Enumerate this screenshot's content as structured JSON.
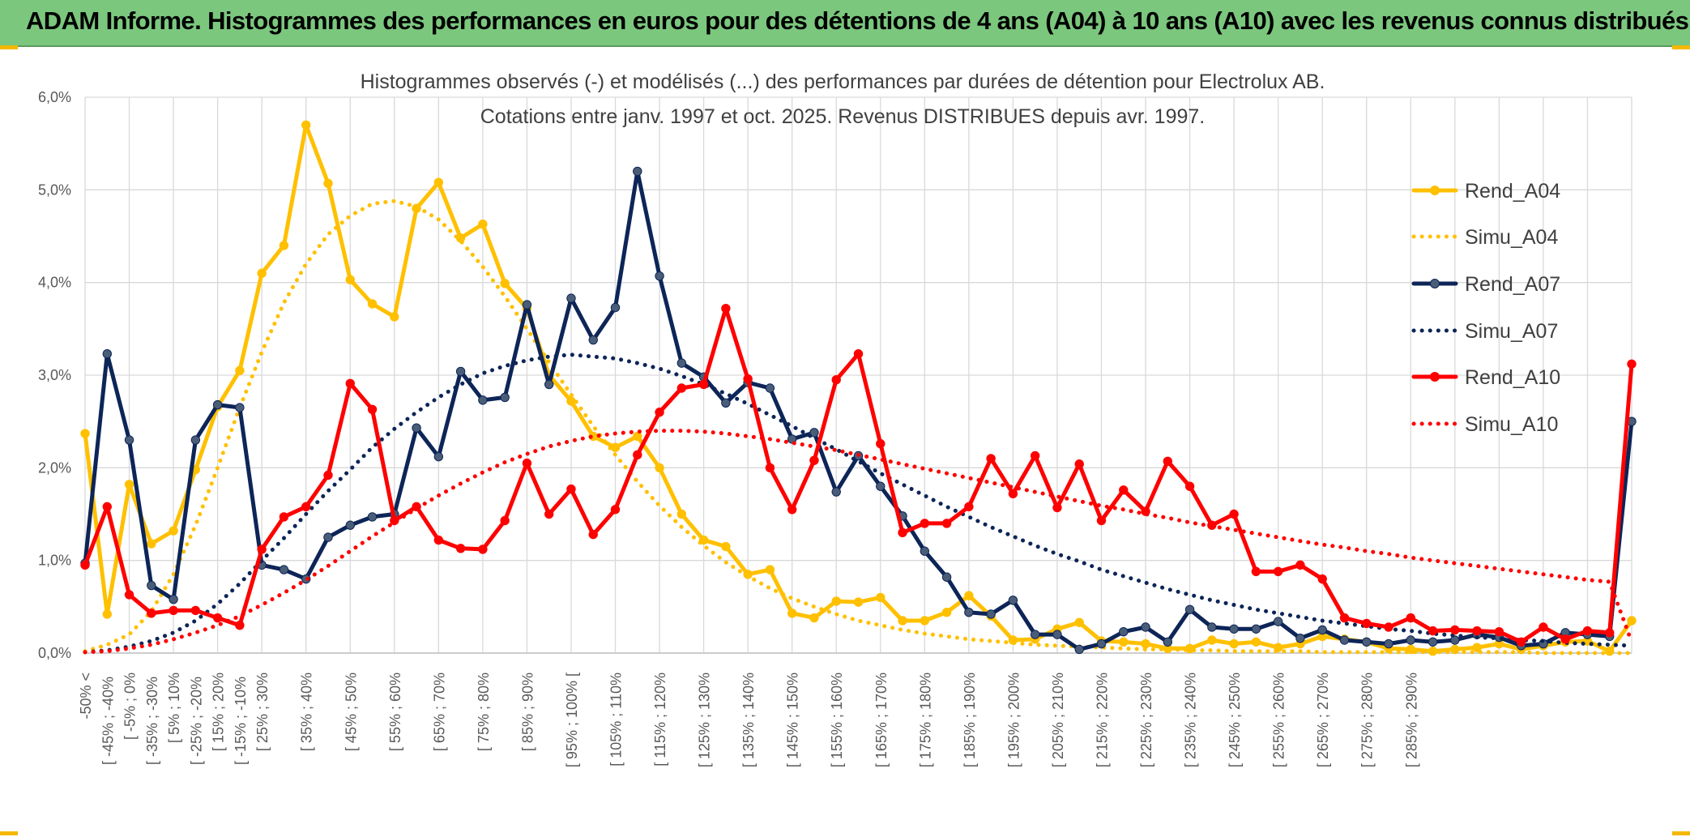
{
  "header": {
    "title": "ADAM Informe. Histogrammes des performances en euros pour des détentions de 4 ans (A04) à 10 ans (A10) avec les revenus connus distribués"
  },
  "colors": {
    "a04": "#ffc000",
    "a07": "#0d2557",
    "a10": "#ff0000",
    "banner": "#7bc77e"
  },
  "chart_data": {
    "type": "line",
    "title": "Histogrammes observés (-) et modélisés (...) des performances par durées de détention pour Electrolux AB.",
    "subtitle": "Cotations entre janv. 1997 et oct. 2025. Revenus DISTRIBUES depuis avr. 1997.",
    "ylim": [
      0,
      6
    ],
    "yticks": [
      "0,0%",
      "1,0%",
      "2,0%",
      "3,0%",
      "4,0%",
      "5,0%",
      "6,0%"
    ],
    "xlabels_odd": [
      "-50% <",
      "[ -5% ; 0%",
      "[ 5% ; 10%",
      "[ 15% ; 20%",
      "[ 25% ; 30%",
      "[ 35% ; 40%",
      "[ 45% ; 50%",
      "[ 55% ; 60%",
      "[ 65% ; 70%",
      "[ 75% ; 80%",
      "[ 85% ; 90%",
      "[ 95% ; 100% [",
      "[ 105% ; 110%",
      "[ 115% ; 120%",
      "[ 125% ; 130%",
      "[ 135% ; 140%",
      "[ 145% ; 150%",
      "[ 155% ; 160%",
      "[ 165% ; 170%",
      "[ 175% ; 180%",
      "[ 185% ; 190%",
      "[ 195% ; 200%",
      "[ 205% ; 210%",
      "[ 215% ; 220%",
      "[ 225% ; 230%",
      "[ 235% ; 240%",
      "[ 245% ; 250%",
      "[ 255% ; 260%",
      "[ 265% ; 270%",
      "[ 275% ; 280%",
      "[ 285% ; 290%"
    ],
    "xlabels_even": [
      "[ -45% ; -40%",
      "[ -35% ; -30%",
      "[ -25% ; -20%",
      "[ -15% ; -10%"
    ],
    "series": [
      {
        "name": "Rend_A04",
        "style": "solid",
        "color": "#ffc000",
        "values": [
          2.37,
          0.42,
          1.82,
          1.18,
          1.32,
          1.98,
          2.66,
          3.05,
          4.1,
          4.4,
          5.7,
          5.07,
          4.03,
          3.77,
          3.63,
          4.8,
          5.08,
          4.48,
          4.63,
          3.99,
          3.72,
          3.0,
          2.72,
          2.34,
          2.22,
          2.34,
          2.0,
          1.5,
          1.22,
          1.15,
          0.85,
          0.9,
          0.43,
          0.38,
          0.56,
          0.55,
          0.6,
          0.35,
          0.35,
          0.44,
          0.62,
          0.4,
          0.14,
          0.15,
          0.26,
          0.33,
          0.13,
          0.12,
          0.1,
          0.05,
          0.05,
          0.14,
          0.1,
          0.12,
          0.06,
          0.1,
          0.18,
          0.15,
          0.12,
          0.05,
          0.04,
          0.02,
          0.04,
          0.06,
          0.1,
          0.04,
          0.08,
          0.12,
          0.13,
          0.02,
          0.35
        ]
      },
      {
        "name": "Simu_A04",
        "style": "dotted",
        "color": "#ffc000",
        "values": [
          0.02,
          0.09,
          0.2,
          0.45,
          0.85,
          1.38,
          2.0,
          2.65,
          3.25,
          3.78,
          4.2,
          4.52,
          4.72,
          4.85,
          4.88,
          4.82,
          4.68,
          4.45,
          4.17,
          3.85,
          3.5,
          3.14,
          2.79,
          2.45,
          2.14,
          1.85,
          1.59,
          1.36,
          1.16,
          0.98,
          0.83,
          0.7,
          0.59,
          0.5,
          0.42,
          0.35,
          0.3,
          0.25,
          0.21,
          0.18,
          0.15,
          0.13,
          0.11,
          0.09,
          0.08,
          0.07,
          0.06,
          0.05,
          0.04,
          0.04,
          0.03,
          0.03,
          0.02,
          0.02,
          0.02,
          0.02,
          0.01,
          0.01,
          0.01,
          0.01,
          0.01,
          0.01,
          0.01,
          0.01,
          0.01,
          0.01,
          0.0,
          0.0,
          0.0,
          0.0,
          0.0
        ]
      },
      {
        "name": "Rend_A07",
        "style": "solid",
        "color": "#0d2557",
        "values": [
          0.97,
          3.23,
          2.3,
          0.73,
          0.58,
          2.3,
          2.68,
          2.65,
          0.95,
          0.9,
          0.8,
          1.25,
          1.38,
          1.47,
          1.5,
          2.43,
          2.12,
          3.04,
          2.73,
          2.76,
          3.76,
          2.9,
          3.83,
          3.38,
          3.73,
          5.2,
          4.07,
          3.13,
          2.98,
          2.7,
          2.92,
          2.86,
          2.31,
          2.38,
          1.74,
          2.13,
          1.8,
          1.48,
          1.1,
          0.82,
          0.44,
          0.42,
          0.57,
          0.2,
          0.2,
          0.04,
          0.1,
          0.23,
          0.28,
          0.12,
          0.47,
          0.28,
          0.26,
          0.26,
          0.34,
          0.16,
          0.25,
          0.14,
          0.12,
          0.1,
          0.14,
          0.12,
          0.14,
          0.2,
          0.17,
          0.08,
          0.1,
          0.22,
          0.2,
          0.18,
          2.5
        ]
      },
      {
        "name": "Simu_A07",
        "style": "dotted",
        "color": "#0d2557",
        "values": [
          0.01,
          0.03,
          0.07,
          0.13,
          0.22,
          0.35,
          0.53,
          0.75,
          1.0,
          1.24,
          1.5,
          1.75,
          1.98,
          2.22,
          2.42,
          2.6,
          2.76,
          2.9,
          3.02,
          3.1,
          3.16,
          3.2,
          3.22,
          3.2,
          3.18,
          3.13,
          3.07,
          2.99,
          2.9,
          2.8,
          2.69,
          2.57,
          2.45,
          2.32,
          2.2,
          2.07,
          1.94,
          1.82,
          1.7,
          1.58,
          1.47,
          1.36,
          1.26,
          1.16,
          1.07,
          0.99,
          0.9,
          0.83,
          0.76,
          0.69,
          0.63,
          0.57,
          0.52,
          0.47,
          0.43,
          0.39,
          0.35,
          0.32,
          0.29,
          0.26,
          0.24,
          0.21,
          0.19,
          0.17,
          0.16,
          0.14,
          0.13,
          0.11,
          0.1,
          0.09,
          0.08
        ]
      },
      {
        "name": "Rend_A10",
        "style": "solid",
        "color": "#ff0000",
        "values": [
          0.95,
          1.58,
          0.63,
          0.43,
          0.46,
          0.46,
          0.38,
          0.3,
          1.12,
          1.47,
          1.58,
          1.92,
          2.91,
          2.63,
          1.43,
          1.58,
          1.22,
          1.13,
          1.12,
          1.43,
          2.05,
          1.5,
          1.77,
          1.28,
          1.55,
          2.14,
          2.6,
          2.86,
          2.9,
          3.72,
          2.96,
          2.0,
          1.55,
          2.08,
          2.95,
          3.23,
          2.26,
          1.3,
          1.4,
          1.4,
          1.58,
          2.1,
          1.72,
          2.13,
          1.57,
          2.04,
          1.43,
          1.76,
          1.53,
          2.07,
          1.8,
          1.38,
          1.5,
          0.88,
          0.88,
          0.95,
          0.8,
          0.38,
          0.32,
          0.28,
          0.38,
          0.24,
          0.25,
          0.24,
          0.23,
          0.12,
          0.28,
          0.15,
          0.24,
          0.22,
          3.12
        ]
      },
      {
        "name": "Simu_A10",
        "style": "dotted",
        "color": "#ff0000",
        "values": [
          0.01,
          0.02,
          0.05,
          0.09,
          0.15,
          0.22,
          0.3,
          0.4,
          0.52,
          0.65,
          0.79,
          0.94,
          1.1,
          1.26,
          1.41,
          1.56,
          1.7,
          1.83,
          1.95,
          2.06,
          2.15,
          2.23,
          2.29,
          2.34,
          2.37,
          2.39,
          2.4,
          2.4,
          2.39,
          2.37,
          2.34,
          2.31,
          2.27,
          2.23,
          2.19,
          2.14,
          2.09,
          2.04,
          1.99,
          1.94,
          1.89,
          1.84,
          1.79,
          1.74,
          1.69,
          1.64,
          1.59,
          1.55,
          1.5,
          1.46,
          1.41,
          1.37,
          1.33,
          1.29,
          1.25,
          1.21,
          1.17,
          1.14,
          1.1,
          1.07,
          1.03,
          1.0,
          0.97,
          0.94,
          0.91,
          0.88,
          0.85,
          0.82,
          0.79,
          0.77,
          0.12
        ]
      }
    ]
  }
}
